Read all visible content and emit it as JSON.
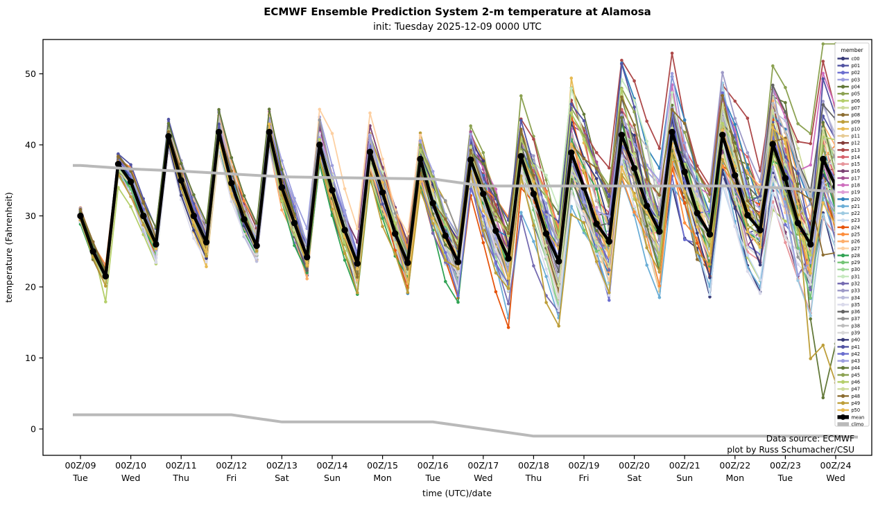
{
  "title": "ECMWF Ensemble Prediction System 2-m temperature at Alamosa",
  "subtitle": "init: Tuesday 2025-12-09 0000 UTC",
  "annotation": {
    "line1": "Data source: ECMWF",
    "line2": "plot by Russ Schumacher/CSU"
  },
  "axes": {
    "ylabel": "temperature (Fahrenheit)",
    "xlabel": "time (UTC)/date",
    "yticks": [
      0,
      10,
      20,
      30,
      40,
      50
    ],
    "xticks": [
      {
        "top": "00Z/09",
        "bottom": "Tue"
      },
      {
        "top": "00Z/10",
        "bottom": "Wed"
      },
      {
        "top": "00Z/11",
        "bottom": "Thu"
      },
      {
        "top": "00Z/12",
        "bottom": "Fri"
      },
      {
        "top": "00Z/13",
        "bottom": "Sat"
      },
      {
        "top": "00Z/14",
        "bottom": "Sun"
      },
      {
        "top": "00Z/15",
        "bottom": "Mon"
      },
      {
        "top": "00Z/16",
        "bottom": "Tue"
      },
      {
        "top": "00Z/17",
        "bottom": "Wed"
      },
      {
        "top": "00Z/18",
        "bottom": "Thu"
      },
      {
        "top": "00Z/19",
        "bottom": "Fri"
      },
      {
        "top": "00Z/20",
        "bottom": "Sat"
      },
      {
        "top": "00Z/21",
        "bottom": "Sun"
      },
      {
        "top": "00Z/22",
        "bottom": "Mon"
      },
      {
        "top": "00Z/23",
        "bottom": "Tue"
      },
      {
        "top": "00Z/24",
        "bottom": "Wed"
      }
    ]
  },
  "legend": {
    "title": "member"
  },
  "chart_data": {
    "type": "line",
    "x_start": "2025-12-09 0000 UTC",
    "x_end": "2025-12-24 0000 UTC",
    "x_step_hours": 6,
    "ylim": [
      -3.9,
      54.6
    ],
    "yticks": [
      0,
      10,
      20,
      30,
      40,
      50
    ],
    "grid": false,
    "legend_position": "right",
    "mean_series": [
      30.0,
      25.0,
      21.5,
      37.3,
      34.8,
      30.0,
      26.0,
      41.2,
      35.0,
      30.0,
      26.3,
      41.8,
      34.6,
      29.5,
      25.8,
      41.8,
      34.0,
      29.0,
      24.2,
      40.0,
      33.6,
      28.0,
      23.3,
      39.0,
      33.3,
      27.5,
      23.4,
      38.0,
      31.8,
      27.2,
      23.5,
      37.9,
      33.1,
      27.9,
      24.0,
      38.4,
      33.1,
      27.5,
      23.6,
      38.9,
      34.0,
      28.9,
      26.4,
      41.4,
      36.7,
      31.4,
      27.8,
      41.8,
      36.2,
      30.4,
      27.4,
      41.4,
      35.7,
      30.1,
      28.0,
      40.1,
      35.3,
      29.0,
      26.0,
      38.0,
      34.2
    ],
    "climo_upper_by_day": [
      37.1,
      36.6,
      36.3,
      35.9,
      35.5,
      35.4,
      35.3,
      35.2,
      34.2,
      34.2,
      34.2,
      34.2,
      34.2,
      34.2,
      33.9,
      33.4
    ],
    "climo_lower_by_day": [
      2,
      2,
      2,
      2,
      1,
      1,
      1,
      1,
      0,
      -1,
      -1,
      -1,
      -1,
      -1,
      -1,
      -1
    ],
    "ensemble_spread_by_day": [
      1.3,
      1.8,
      2.0,
      2.2,
      2.5,
      2.8,
      3.2,
      4.2,
      5.2,
      6.0,
      6.3,
      6.5,
      6.8,
      7.2,
      8.5,
      9.5
    ],
    "mean_style": {
      "label": "mean",
      "color": "#000000"
    },
    "climo_style": {
      "label": "climo",
      "color": "#b9b9b9"
    },
    "members": [
      {
        "name": "c00",
        "color": "#393b79"
      },
      {
        "name": "p01",
        "color": "#5254a3"
      },
      {
        "name": "p02",
        "color": "#6b6ecf"
      },
      {
        "name": "p03",
        "color": "#9c9ede"
      },
      {
        "name": "p04",
        "color": "#637939"
      },
      {
        "name": "p05",
        "color": "#8ca252"
      },
      {
        "name": "p06",
        "color": "#b5cf6b"
      },
      {
        "name": "p07",
        "color": "#cedb9c"
      },
      {
        "name": "p08",
        "color": "#8c6d31"
      },
      {
        "name": "p09",
        "color": "#bd9e39"
      },
      {
        "name": "p10",
        "color": "#e7ba52"
      },
      {
        "name": "p11",
        "color": "#e7cb94"
      },
      {
        "name": "p12",
        "color": "#843c39"
      },
      {
        "name": "p13",
        "color": "#ad494a"
      },
      {
        "name": "p14",
        "color": "#d6616b"
      },
      {
        "name": "p15",
        "color": "#e7969c"
      },
      {
        "name": "p16",
        "color": "#7b4173"
      },
      {
        "name": "p17",
        "color": "#a55194"
      },
      {
        "name": "p18",
        "color": "#ce6dbd"
      },
      {
        "name": "p19",
        "color": "#de9ed6"
      },
      {
        "name": "p20",
        "color": "#3182bd"
      },
      {
        "name": "p21",
        "color": "#6baed6"
      },
      {
        "name": "p22",
        "color": "#9ecae1"
      },
      {
        "name": "p23",
        "color": "#c6dbef"
      },
      {
        "name": "p24",
        "color": "#e6550d"
      },
      {
        "name": "p25",
        "color": "#fd8d3c"
      },
      {
        "name": "p26",
        "color": "#fdae6b"
      },
      {
        "name": "p27",
        "color": "#fdd0a2"
      },
      {
        "name": "p28",
        "color": "#31a354"
      },
      {
        "name": "p29",
        "color": "#74c476"
      },
      {
        "name": "p30",
        "color": "#a1d99b"
      },
      {
        "name": "p31",
        "color": "#c7e9c0"
      },
      {
        "name": "p32",
        "color": "#756bb1"
      },
      {
        "name": "p33",
        "color": "#9e9ac8"
      },
      {
        "name": "p34",
        "color": "#bcbddc"
      },
      {
        "name": "p35",
        "color": "#dadaeb"
      },
      {
        "name": "p36",
        "color": "#636363"
      },
      {
        "name": "p37",
        "color": "#969696"
      },
      {
        "name": "p38",
        "color": "#bdbdbd"
      },
      {
        "name": "p39",
        "color": "#d9d9d9"
      },
      {
        "name": "p40",
        "color": "#393b79"
      },
      {
        "name": "p41",
        "color": "#5254a3"
      },
      {
        "name": "p42",
        "color": "#6b6ecf"
      },
      {
        "name": "p43",
        "color": "#9c9ede"
      },
      {
        "name": "p44",
        "color": "#637939"
      },
      {
        "name": "p45",
        "color": "#8ca252"
      },
      {
        "name": "p46",
        "color": "#b5cf6b"
      },
      {
        "name": "p47",
        "color": "#cedb9c"
      },
      {
        "name": "p48",
        "color": "#8c6d31"
      },
      {
        "name": "p49",
        "color": "#bd9e39"
      },
      {
        "name": "p50",
        "color": "#e7ba52"
      }
    ],
    "outlier_overrides": {
      "p06": {
        "2": 17.9
      },
      "p27": {
        "11": 43.9,
        "15": 44.4,
        "19": 45.0,
        "20": 41.6
      },
      "p05": {
        "35": 46.9
      },
      "p10": {
        "39": 49.4
      },
      "p20": {
        "43": 51.5,
        "44": 46.5,
        "45": 39.6,
        "47": 49.6,
        "48": 43.5
      },
      "p22": {
        "51": 48.7
      },
      "p36": {
        "55": 48.4
      },
      "p04": {
        "58": 15.5,
        "59": 4.4,
        "60": 12.0
      },
      "p49": {
        "37": 17.8,
        "38": 14.5,
        "58": 9.9,
        "59": 11.8,
        "60": 6.5
      },
      "p41": {
        "59": 49.3,
        "60": 44.0
      },
      "p48": {
        "59": 24.5,
        "60": 24.8
      }
    }
  }
}
